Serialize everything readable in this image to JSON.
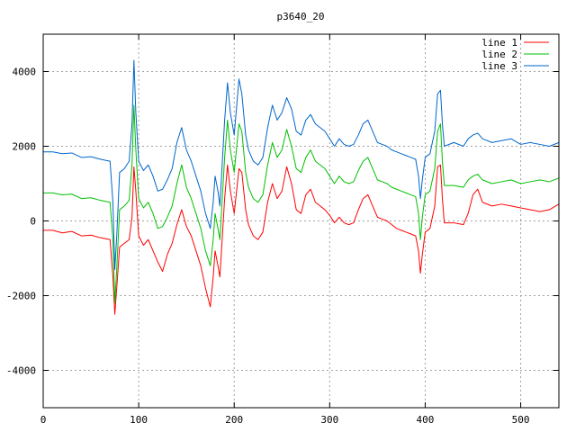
{
  "chart_data": {
    "type": "line",
    "title": "p3640_20",
    "xlabel": "",
    "ylabel": "",
    "xlim": [
      0,
      540
    ],
    "ylim": [
      -5000,
      5000
    ],
    "xticks": [
      0,
      100,
      200,
      300,
      400,
      500
    ],
    "yticks": [
      -4000,
      -2000,
      0,
      2000,
      4000
    ],
    "grid": true,
    "legend_position": "top-right",
    "series": [
      {
        "name": "line 1",
        "color": "#ff0000",
        "points": [
          [
            0,
            -250
          ],
          [
            10,
            -250
          ],
          [
            20,
            -320
          ],
          [
            30,
            -280
          ],
          [
            40,
            -400
          ],
          [
            50,
            -380
          ],
          [
            60,
            -450
          ],
          [
            70,
            -500
          ],
          [
            73,
            -1500
          ],
          [
            75,
            -2500
          ],
          [
            77,
            -1800
          ],
          [
            80,
            -700
          ],
          [
            85,
            -600
          ],
          [
            90,
            -500
          ],
          [
            93,
            100
          ],
          [
            95,
            1450
          ],
          [
            97,
            800
          ],
          [
            100,
            -400
          ],
          [
            105,
            -650
          ],
          [
            110,
            -500
          ],
          [
            115,
            -800
          ],
          [
            120,
            -1100
          ],
          [
            125,
            -1350
          ],
          [
            130,
            -900
          ],
          [
            135,
            -600
          ],
          [
            140,
            -100
          ],
          [
            145,
            300
          ],
          [
            150,
            -150
          ],
          [
            155,
            -400
          ],
          [
            160,
            -800
          ],
          [
            165,
            -1200
          ],
          [
            170,
            -1800
          ],
          [
            175,
            -2300
          ],
          [
            178,
            -1500
          ],
          [
            180,
            -800
          ],
          [
            183,
            -1200
          ],
          [
            185,
            -1500
          ],
          [
            190,
            600
          ],
          [
            193,
            1500
          ],
          [
            196,
            800
          ],
          [
            200,
            200
          ],
          [
            205,
            1400
          ],
          [
            208,
            1300
          ],
          [
            212,
            300
          ],
          [
            215,
            -100
          ],
          [
            220,
            -400
          ],
          [
            225,
            -500
          ],
          [
            230,
            -300
          ],
          [
            235,
            500
          ],
          [
            240,
            1000
          ],
          [
            245,
            600
          ],
          [
            250,
            800
          ],
          [
            255,
            1450
          ],
          [
            260,
            1000
          ],
          [
            265,
            300
          ],
          [
            270,
            200
          ],
          [
            275,
            700
          ],
          [
            280,
            850
          ],
          [
            285,
            500
          ],
          [
            290,
            400
          ],
          [
            295,
            300
          ],
          [
            300,
            150
          ],
          [
            305,
            -50
          ],
          [
            310,
            100
          ],
          [
            315,
            -50
          ],
          [
            320,
            -100
          ],
          [
            325,
            -50
          ],
          [
            330,
            300
          ],
          [
            335,
            600
          ],
          [
            340,
            700
          ],
          [
            345,
            400
          ],
          [
            350,
            100
          ],
          [
            355,
            50
          ],
          [
            360,
            0
          ],
          [
            365,
            -100
          ],
          [
            370,
            -200
          ],
          [
            375,
            -250
          ],
          [
            380,
            -300
          ],
          [
            385,
            -350
          ],
          [
            390,
            -400
          ],
          [
            393,
            -800
          ],
          [
            395,
            -1400
          ],
          [
            397,
            -900
          ],
          [
            400,
            -300
          ],
          [
            405,
            -200
          ],
          [
            410,
            400
          ],
          [
            413,
            1450
          ],
          [
            416,
            1500
          ],
          [
            418,
            600
          ],
          [
            420,
            -50
          ],
          [
            430,
            -50
          ],
          [
            440,
            -100
          ],
          [
            445,
            200
          ],
          [
            450,
            700
          ],
          [
            455,
            850
          ],
          [
            460,
            500
          ],
          [
            470,
            400
          ],
          [
            480,
            450
          ],
          [
            490,
            400
          ],
          [
            500,
            350
          ],
          [
            510,
            300
          ],
          [
            520,
            250
          ],
          [
            530,
            300
          ],
          [
            540,
            450
          ]
        ]
      },
      {
        "name": "line 2",
        "color": "#00c000",
        "points": [
          [
            0,
            750
          ],
          [
            10,
            750
          ],
          [
            20,
            700
          ],
          [
            30,
            720
          ],
          [
            40,
            600
          ],
          [
            50,
            620
          ],
          [
            60,
            550
          ],
          [
            70,
            500
          ],
          [
            73,
            -500
          ],
          [
            75,
            -2200
          ],
          [
            77,
            -1300
          ],
          [
            80,
            300
          ],
          [
            85,
            400
          ],
          [
            90,
            550
          ],
          [
            93,
            1500
          ],
          [
            95,
            3100
          ],
          [
            97,
            1900
          ],
          [
            100,
            600
          ],
          [
            105,
            350
          ],
          [
            110,
            500
          ],
          [
            115,
            200
          ],
          [
            120,
            -200
          ],
          [
            125,
            -150
          ],
          [
            130,
            100
          ],
          [
            135,
            400
          ],
          [
            140,
            1000
          ],
          [
            145,
            1500
          ],
          [
            150,
            900
          ],
          [
            155,
            600
          ],
          [
            160,
            200
          ],
          [
            165,
            -200
          ],
          [
            170,
            -800
          ],
          [
            175,
            -1200
          ],
          [
            178,
            -500
          ],
          [
            180,
            200
          ],
          [
            183,
            -200
          ],
          [
            185,
            -500
          ],
          [
            190,
            1700
          ],
          [
            193,
            2700
          ],
          [
            196,
            1900
          ],
          [
            200,
            1300
          ],
          [
            205,
            2600
          ],
          [
            208,
            2400
          ],
          [
            212,
            1300
          ],
          [
            215,
            900
          ],
          [
            220,
            600
          ],
          [
            225,
            500
          ],
          [
            230,
            700
          ],
          [
            235,
            1500
          ],
          [
            240,
            2100
          ],
          [
            245,
            1700
          ],
          [
            250,
            1900
          ],
          [
            255,
            2450
          ],
          [
            260,
            2000
          ],
          [
            265,
            1400
          ],
          [
            270,
            1300
          ],
          [
            275,
            1700
          ],
          [
            280,
            1900
          ],
          [
            285,
            1600
          ],
          [
            290,
            1500
          ],
          [
            295,
            1400
          ],
          [
            300,
            1200
          ],
          [
            305,
            1000
          ],
          [
            310,
            1200
          ],
          [
            315,
            1050
          ],
          [
            320,
            1000
          ],
          [
            325,
            1050
          ],
          [
            330,
            1350
          ],
          [
            335,
            1600
          ],
          [
            340,
            1700
          ],
          [
            345,
            1400
          ],
          [
            350,
            1100
          ],
          [
            355,
            1050
          ],
          [
            360,
            1000
          ],
          [
            365,
            900
          ],
          [
            370,
            850
          ],
          [
            375,
            800
          ],
          [
            380,
            750
          ],
          [
            385,
            700
          ],
          [
            390,
            650
          ],
          [
            393,
            200
          ],
          [
            395,
            -500
          ],
          [
            397,
            100
          ],
          [
            400,
            700
          ],
          [
            405,
            800
          ],
          [
            410,
            1400
          ],
          [
            413,
            2400
          ],
          [
            416,
            2600
          ],
          [
            418,
            1600
          ],
          [
            420,
            950
          ],
          [
            430,
            950
          ],
          [
            440,
            900
          ],
          [
            445,
            1100
          ],
          [
            450,
            1200
          ],
          [
            455,
            1250
          ],
          [
            460,
            1100
          ],
          [
            470,
            1000
          ],
          [
            480,
            1050
          ],
          [
            490,
            1100
          ],
          [
            500,
            1000
          ],
          [
            510,
            1050
          ],
          [
            520,
            1100
          ],
          [
            530,
            1050
          ],
          [
            540,
            1150
          ]
        ]
      },
      {
        "name": "line 3",
        "color": "#0066cc",
        "points": [
          [
            0,
            1850
          ],
          [
            10,
            1850
          ],
          [
            20,
            1800
          ],
          [
            30,
            1820
          ],
          [
            40,
            1700
          ],
          [
            50,
            1720
          ],
          [
            60,
            1650
          ],
          [
            70,
            1600
          ],
          [
            73,
            500
          ],
          [
            75,
            -1300
          ],
          [
            77,
            -400
          ],
          [
            80,
            1300
          ],
          [
            85,
            1400
          ],
          [
            90,
            1600
          ],
          [
            93,
            2600
          ],
          [
            95,
            4300
          ],
          [
            97,
            2900
          ],
          [
            100,
            1600
          ],
          [
            105,
            1350
          ],
          [
            110,
            1500
          ],
          [
            115,
            1200
          ],
          [
            120,
            800
          ],
          [
            125,
            850
          ],
          [
            130,
            1100
          ],
          [
            135,
            1400
          ],
          [
            140,
            2100
          ],
          [
            145,
            2500
          ],
          [
            150,
            1900
          ],
          [
            155,
            1600
          ],
          [
            160,
            1200
          ],
          [
            165,
            800
          ],
          [
            170,
            200
          ],
          [
            175,
            -200
          ],
          [
            178,
            500
          ],
          [
            180,
            1200
          ],
          [
            183,
            800
          ],
          [
            185,
            400
          ],
          [
            190,
            2700
          ],
          [
            193,
            3700
          ],
          [
            196,
            2900
          ],
          [
            200,
            2300
          ],
          [
            205,
            3800
          ],
          [
            208,
            3400
          ],
          [
            212,
            2300
          ],
          [
            215,
            1900
          ],
          [
            220,
            1600
          ],
          [
            225,
            1500
          ],
          [
            230,
            1700
          ],
          [
            235,
            2500
          ],
          [
            240,
            3100
          ],
          [
            245,
            2700
          ],
          [
            250,
            2900
          ],
          [
            255,
            3300
          ],
          [
            260,
            3000
          ],
          [
            265,
            2400
          ],
          [
            270,
            2300
          ],
          [
            275,
            2700
          ],
          [
            280,
            2850
          ],
          [
            285,
            2600
          ],
          [
            290,
            2500
          ],
          [
            295,
            2400
          ],
          [
            300,
            2200
          ],
          [
            305,
            2000
          ],
          [
            310,
            2200
          ],
          [
            315,
            2050
          ],
          [
            320,
            2000
          ],
          [
            325,
            2050
          ],
          [
            330,
            2300
          ],
          [
            335,
            2600
          ],
          [
            340,
            2700
          ],
          [
            345,
            2400
          ],
          [
            350,
            2100
          ],
          [
            355,
            2050
          ],
          [
            360,
            2000
          ],
          [
            365,
            1900
          ],
          [
            370,
            1850
          ],
          [
            375,
            1800
          ],
          [
            380,
            1750
          ],
          [
            385,
            1700
          ],
          [
            390,
            1650
          ],
          [
            393,
            1200
          ],
          [
            395,
            600
          ],
          [
            397,
            1100
          ],
          [
            400,
            1700
          ],
          [
            405,
            1800
          ],
          [
            410,
            2400
          ],
          [
            413,
            3400
          ],
          [
            416,
            3500
          ],
          [
            418,
            2600
          ],
          [
            420,
            2000
          ],
          [
            430,
            2100
          ],
          [
            440,
            2000
          ],
          [
            445,
            2200
          ],
          [
            450,
            2300
          ],
          [
            455,
            2350
          ],
          [
            460,
            2200
          ],
          [
            470,
            2100
          ],
          [
            480,
            2150
          ],
          [
            490,
            2200
          ],
          [
            500,
            2050
          ],
          [
            510,
            2100
          ],
          [
            520,
            2050
          ],
          [
            530,
            2000
          ],
          [
            540,
            2100
          ]
        ]
      }
    ]
  }
}
